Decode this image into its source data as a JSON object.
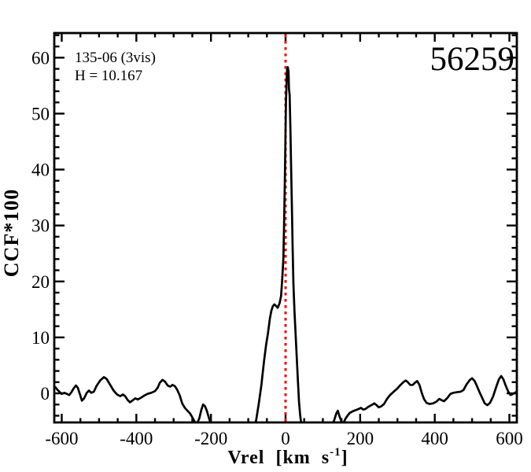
{
  "figure": {
    "background": "#ffffff",
    "axis_color": "#000000"
  },
  "chart_data": {
    "type": "line",
    "title": "",
    "xlabel": "Vrel [km s^-1]",
    "xlabel_parts": {
      "prefix": "Vrel [km s",
      "superscript": "-1",
      "suffix": "]"
    },
    "ylabel": "CCF*100",
    "xlim": [
      -620,
      620
    ],
    "ylim": [
      -5.2,
      64.4
    ],
    "grid": false,
    "legend": "none",
    "x_major_ticks": [
      -600,
      -400,
      -200,
      0,
      200,
      400,
      600
    ],
    "x_tick_labels": [
      "-600",
      "-400",
      "-200",
      "0",
      "200",
      "400",
      "600"
    ],
    "x_minor_step": 50,
    "y_major_ticks": [
      0,
      10,
      20,
      30,
      40,
      50,
      60
    ],
    "y_tick_labels": [
      "0",
      "10",
      "20",
      "30",
      "40",
      "50",
      "60"
    ],
    "y_minor_step": 2,
    "annotations": {
      "target_label": "135-06 (3vis)",
      "h_mag_label": "H = 10.167",
      "mjd_label": "56259"
    },
    "marker_line": {
      "x": 0,
      "color": "#ee1100",
      "style": "dotted"
    },
    "series": [
      {
        "name": "CCF",
        "color": "#000000",
        "points": [
          [
            -617,
            1.1
          ],
          [
            -611,
            0.6
          ],
          [
            -605,
            0.2
          ],
          [
            -600,
            -0.1
          ],
          [
            -593,
            0.1
          ],
          [
            -586,
            -0.1
          ],
          [
            -580,
            -0.3
          ],
          [
            -574,
            0.2
          ],
          [
            -568,
            0.9
          ],
          [
            -562,
            1.4
          ],
          [
            -557,
            1.0
          ],
          [
            -551,
            -0.2
          ],
          [
            -546,
            -1.3
          ],
          [
            -540,
            -0.9
          ],
          [
            -533,
            0.1
          ],
          [
            -527,
            0.5
          ],
          [
            -521,
            0.1
          ],
          [
            -514,
            0.3
          ],
          [
            -507,
            1.3
          ],
          [
            -497,
            2.3
          ],
          [
            -487,
            2.9
          ],
          [
            -480,
            2.6
          ],
          [
            -471,
            1.6
          ],
          [
            -461,
            0.5
          ],
          [
            -452,
            -0.2
          ],
          [
            -443,
            -0.5
          ],
          [
            -436,
            -0.2
          ],
          [
            -430,
            -0.5
          ],
          [
            -423,
            -1.2
          ],
          [
            -417,
            -1.6
          ],
          [
            -411,
            -1.3
          ],
          [
            -403,
            -0.9
          ],
          [
            -396,
            -1.1
          ],
          [
            -388,
            -0.8
          ],
          [
            -379,
            -0.4
          ],
          [
            -370,
            -0.1
          ],
          [
            -360,
            0.1
          ],
          [
            -350,
            0.4
          ],
          [
            -343,
            1.0
          ],
          [
            -337,
            1.9
          ],
          [
            -330,
            2.4
          ],
          [
            -323,
            2.1
          ],
          [
            -316,
            1.4
          ],
          [
            -309,
            1.2
          ],
          [
            -303,
            1.5
          ],
          [
            -297,
            1.3
          ],
          [
            -291,
            0.7
          ],
          [
            -284,
            -0.3
          ],
          [
            -277,
            -1.8
          ],
          [
            -270,
            -2.6
          ],
          [
            -263,
            -3.1
          ],
          [
            -256,
            -3.6
          ],
          [
            -250,
            -4.3
          ],
          [
            -244,
            -5.0
          ],
          [
            -240,
            -5.6
          ],
          [
            -236,
            -5.2
          ],
          [
            -231,
            -4.4
          ],
          [
            -226,
            -3.0
          ],
          [
            -221,
            -2.0
          ],
          [
            -216,
            -2.3
          ],
          [
            -211,
            -3.1
          ],
          [
            -205,
            -4.5
          ],
          [
            -200,
            -5.5
          ],
          [
            -193,
            -6.5
          ],
          [
            -183,
            -7.1
          ],
          [
            -170,
            -7.3
          ],
          [
            -155,
            -7.0
          ],
          [
            -140,
            -7.2
          ],
          [
            -125,
            -7.1
          ],
          [
            -110,
            -7.0
          ],
          [
            -96,
            -6.6
          ],
          [
            -86,
            -5.8
          ],
          [
            -79,
            -4.9
          ],
          [
            -72,
            -1.9
          ],
          [
            -65,
            1.4
          ],
          [
            -58,
            5.6
          ],
          [
            -52,
            8.7
          ],
          [
            -47,
            10.8
          ],
          [
            -42,
            13.4
          ],
          [
            -38,
            14.8
          ],
          [
            -34,
            15.6
          ],
          [
            -30,
            15.9
          ],
          [
            -25,
            15.6
          ],
          [
            -21,
            15.3
          ],
          [
            -16,
            16.1
          ],
          [
            -12,
            17.4
          ],
          [
            -9,
            20.3
          ],
          [
            -6,
            24.0
          ],
          [
            -4,
            30.0
          ],
          [
            -2,
            38.0
          ],
          [
            0,
            47.0
          ],
          [
            1,
            52.0
          ],
          [
            3,
            56.0
          ],
          [
            4,
            57.8
          ],
          [
            6,
            58.3
          ],
          [
            8,
            57.5
          ],
          [
            9,
            54.5
          ],
          [
            11,
            53.3
          ],
          [
            13,
            47.0
          ],
          [
            15,
            40.0
          ],
          [
            17,
            33.0
          ],
          [
            19,
            26.0
          ],
          [
            21,
            19.5
          ],
          [
            24,
            14.5
          ],
          [
            27,
            10.5
          ],
          [
            30,
            6.5
          ],
          [
            33,
            2.5
          ],
          [
            36,
            -1.5
          ],
          [
            39,
            -3.8
          ],
          [
            42,
            -5.4
          ],
          [
            46,
            -6.6
          ],
          [
            60,
            -7.4
          ],
          [
            80,
            -7.6
          ],
          [
            100,
            -7.3
          ],
          [
            114,
            -6.6
          ],
          [
            124,
            -5.6
          ],
          [
            130,
            -4.9
          ],
          [
            136,
            -3.6
          ],
          [
            140,
            -3.1
          ],
          [
            145,
            -4.2
          ],
          [
            150,
            -5.0
          ],
          [
            155,
            -5.4
          ],
          [
            160,
            -4.6
          ],
          [
            166,
            -4.0
          ],
          [
            172,
            -3.5
          ],
          [
            180,
            -3.2
          ],
          [
            188,
            -3.0
          ],
          [
            196,
            -2.8
          ],
          [
            202,
            -2.6
          ],
          [
            208,
            -2.9
          ],
          [
            214,
            -2.8
          ],
          [
            222,
            -2.4
          ],
          [
            230,
            -2.1
          ],
          [
            238,
            -1.8
          ],
          [
            244,
            -2.1
          ],
          [
            250,
            -2.5
          ],
          [
            257,
            -2.3
          ],
          [
            264,
            -1.9
          ],
          [
            272,
            -1.0
          ],
          [
            280,
            -0.3
          ],
          [
            290,
            0.3
          ],
          [
            300,
            0.9
          ],
          [
            308,
            1.5
          ],
          [
            316,
            2.0
          ],
          [
            322,
            2.3
          ],
          [
            328,
            2.0
          ],
          [
            334,
            1.5
          ],
          [
            341,
            1.5
          ],
          [
            347,
            1.9
          ],
          [
            353,
            2.2
          ],
          [
            359,
            1.5
          ],
          [
            365,
            0.1
          ],
          [
            371,
            -1.0
          ],
          [
            378,
            -1.7
          ],
          [
            386,
            -1.9
          ],
          [
            395,
            -1.8
          ],
          [
            404,
            -1.5
          ],
          [
            412,
            -1.0
          ],
          [
            418,
            -1.2
          ],
          [
            425,
            -1.4
          ],
          [
            434,
            -0.8
          ],
          [
            442,
            -0.1
          ],
          [
            450,
            0.1
          ],
          [
            459,
            0.2
          ],
          [
            469,
            0.3
          ],
          [
            477,
            0.6
          ],
          [
            486,
            1.7
          ],
          [
            494,
            2.4
          ],
          [
            500,
            2.7
          ],
          [
            507,
            2.2
          ],
          [
            513,
            1.3
          ],
          [
            520,
            0.2
          ],
          [
            527,
            -0.8
          ],
          [
            534,
            -1.8
          ],
          [
            541,
            -2.1
          ],
          [
            548,
            -1.7
          ],
          [
            556,
            -0.6
          ],
          [
            565,
            1.2
          ],
          [
            572,
            2.5
          ],
          [
            578,
            3.1
          ],
          [
            584,
            2.5
          ],
          [
            590,
            1.4
          ],
          [
            597,
            0.3
          ],
          [
            603,
            -0.3
          ],
          [
            610,
            -0.1
          ],
          [
            617,
            0.2
          ]
        ]
      }
    ]
  }
}
